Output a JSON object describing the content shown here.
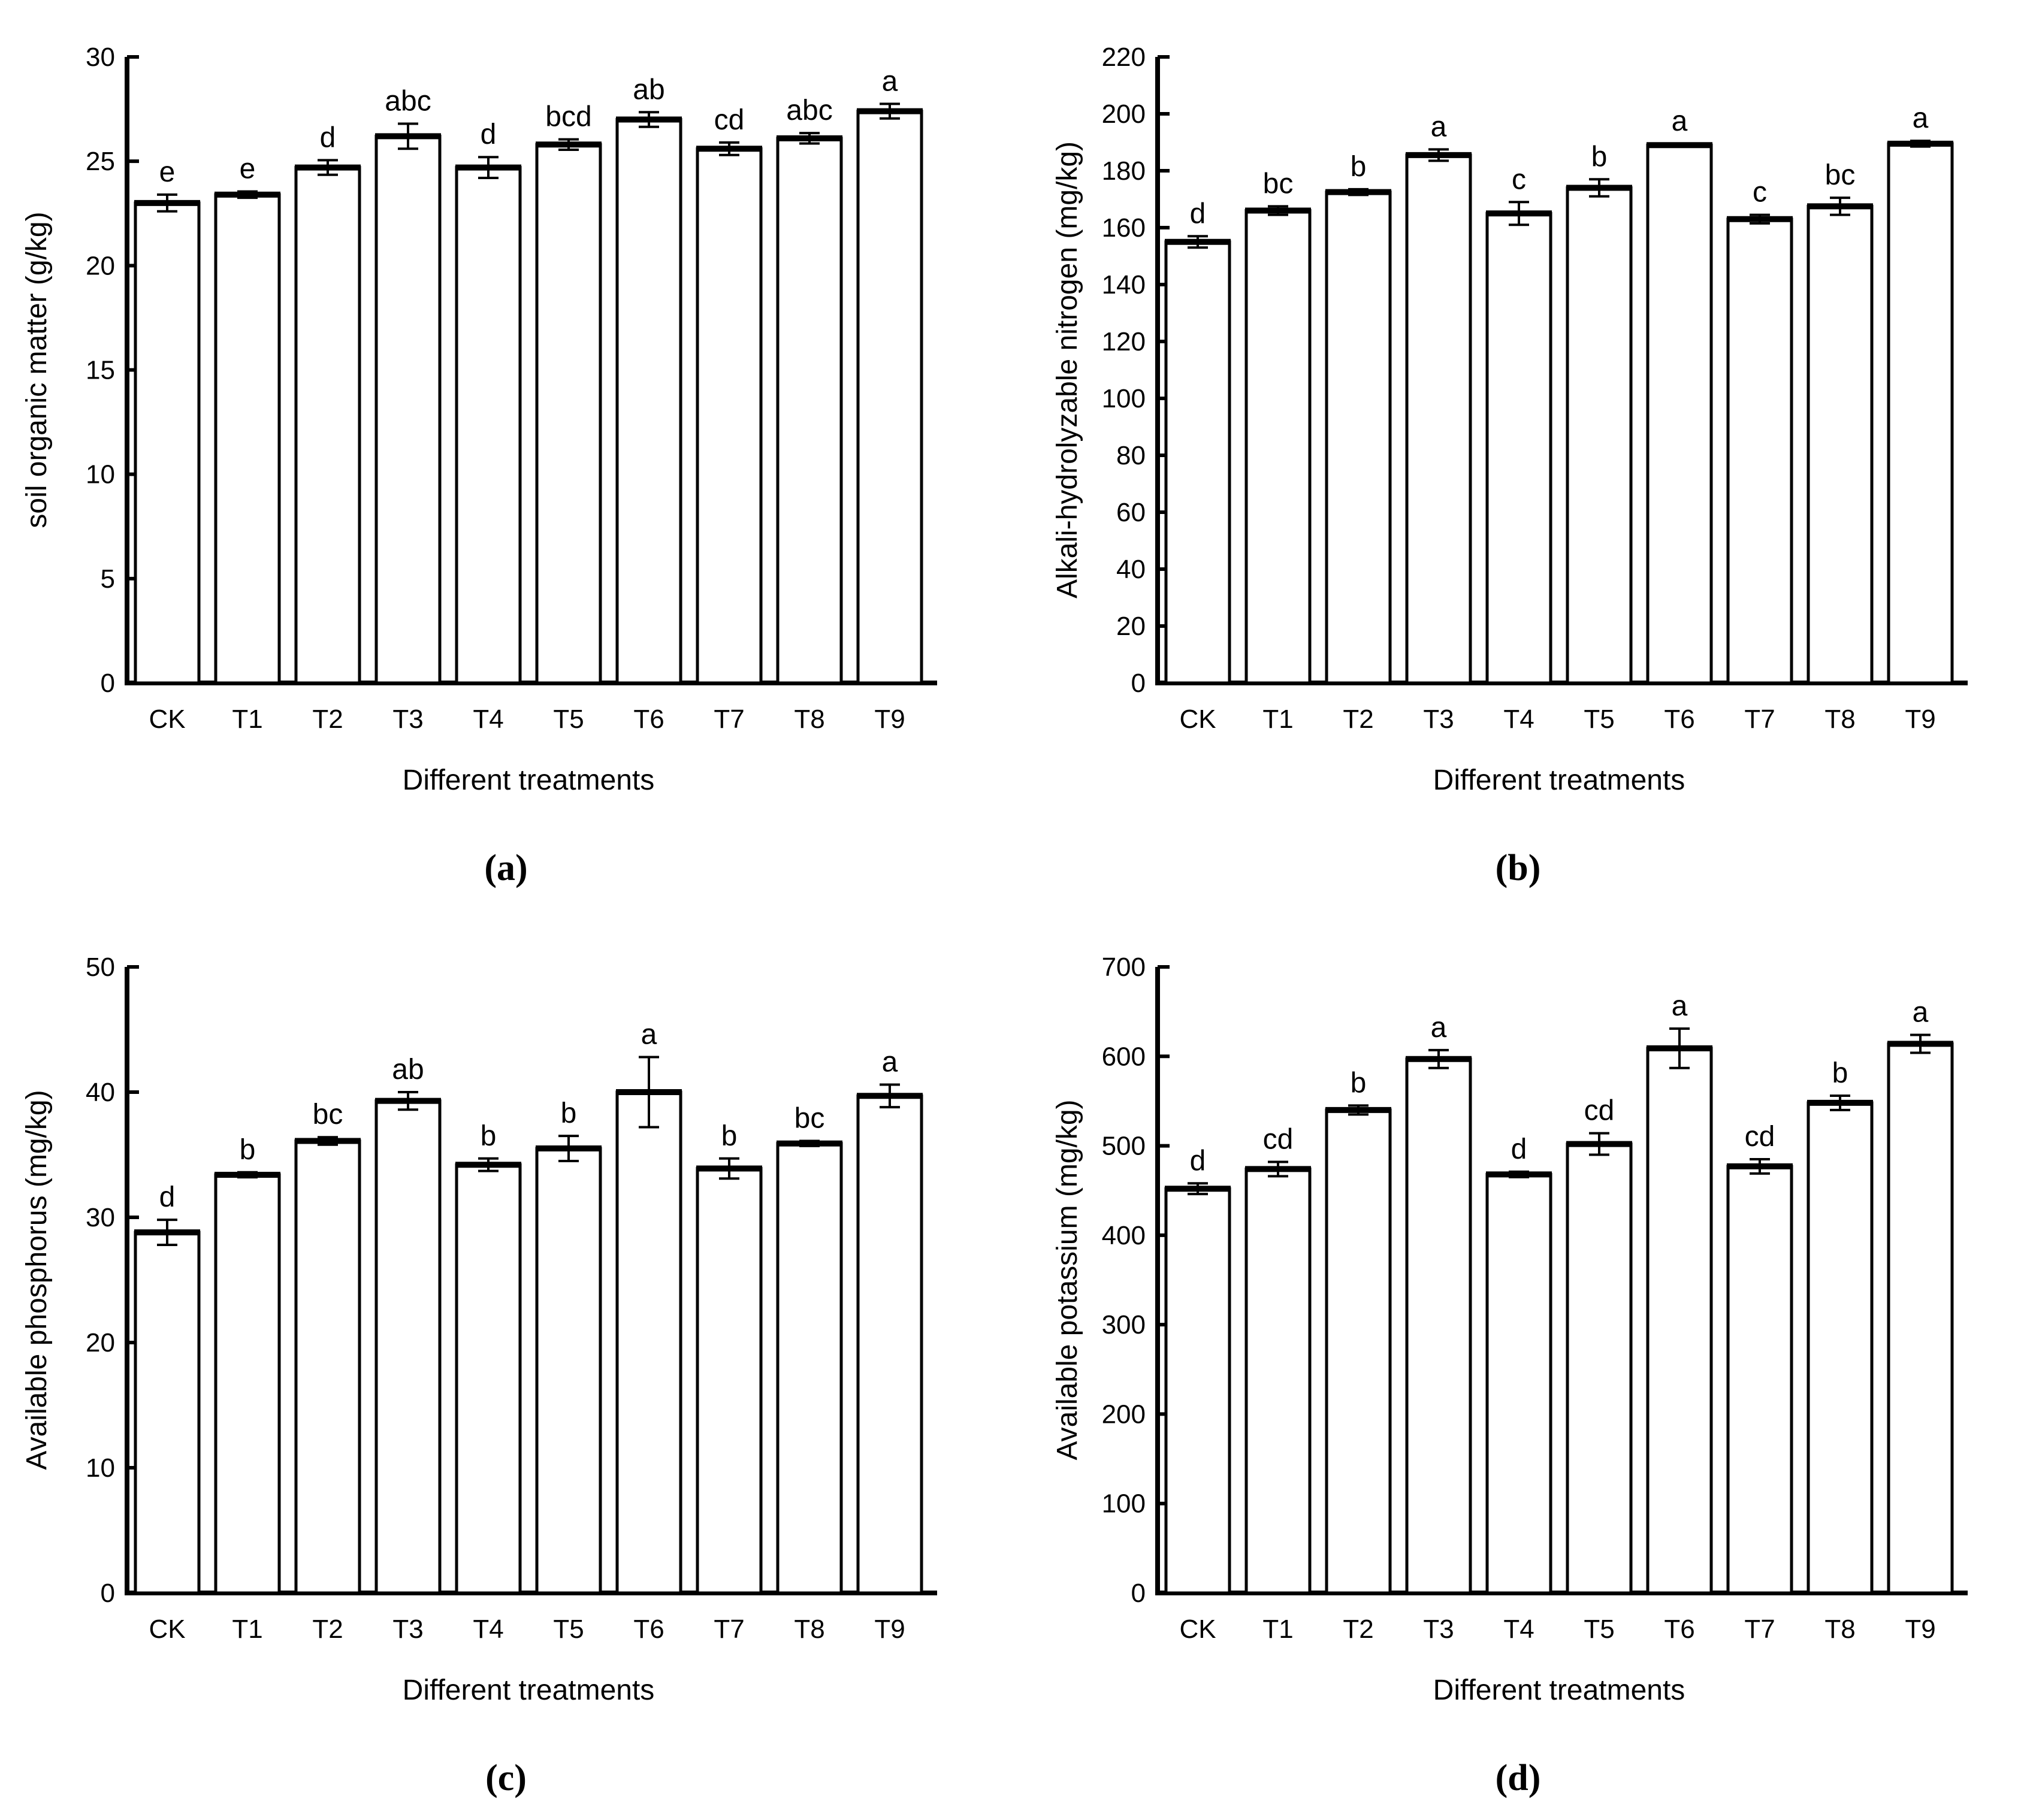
{
  "figure": {
    "background": "#ffffff",
    "ink": "#000000",
    "bar_fill": "#ffffff",
    "bar_stroke": "#000000"
  },
  "chart_data": [
    {
      "type": "bar",
      "panel": "a",
      "caption": "(a)",
      "categories": [
        "CK",
        "T1",
        "T2",
        "T3",
        "T4",
        "T5",
        "T6",
        "T7",
        "T8",
        "T9"
      ],
      "values": [
        23.0,
        23.4,
        24.7,
        26.2,
        24.7,
        25.8,
        27.0,
        25.6,
        26.1,
        27.4
      ],
      "errors": [
        0.4,
        0.15,
        0.35,
        0.6,
        0.5,
        0.25,
        0.35,
        0.3,
        0.25,
        0.35
      ],
      "sig_labels": [
        "e",
        "e",
        "d",
        "abc",
        "d",
        "bcd",
        "ab",
        "cd",
        "abc",
        "a"
      ],
      "title": "",
      "xlabel": "Different treatments",
      "ylabel": "soil organic matter（g/kg）",
      "ylim": [
        0,
        30
      ],
      "ytick_interval": 5,
      "grid": false,
      "legend": "none"
    },
    {
      "type": "bar",
      "panel": "b",
      "caption": "(b)",
      "categories": [
        "CK",
        "T1",
        "T2",
        "T3",
        "T4",
        "T5",
        "T6",
        "T7",
        "T8",
        "T9"
      ],
      "values": [
        155,
        166,
        172.5,
        185.5,
        165,
        174,
        189,
        163,
        167.5,
        189.5
      ],
      "errors": [
        2,
        1.5,
        1,
        2,
        4,
        3,
        0.5,
        1.5,
        3,
        1
      ],
      "sig_labels": [
        "d",
        "bc",
        "b",
        "a",
        "c",
        "b",
        "a",
        "c",
        "bc",
        "a"
      ],
      "title": "",
      "xlabel": "Different treatments",
      "ylabel": "Alkali-hydrolyzable nitrogen（mg/kg）",
      "ylim": [
        0,
        220
      ],
      "ytick_interval": 20,
      "grid": false,
      "legend": "none"
    },
    {
      "type": "bar",
      "panel": "c",
      "caption": "(c)",
      "categories": [
        "CK",
        "T1",
        "T2",
        "T3",
        "T4",
        "T5",
        "T6",
        "T7",
        "T8",
        "T9"
      ],
      "values": [
        28.8,
        33.4,
        36.1,
        39.3,
        34.2,
        35.5,
        40.0,
        33.9,
        35.9,
        39.7
      ],
      "errors": [
        1.0,
        0.2,
        0.3,
        0.7,
        0.5,
        1.0,
        2.8,
        0.8,
        0.2,
        0.9
      ],
      "sig_labels": [
        "d",
        "b",
        "bc",
        "ab",
        "b",
        "b",
        "a",
        "b",
        "bc",
        "a"
      ],
      "title": "",
      "xlabel": "Different treatments",
      "ylabel": "Available phosphorus（mg/kg）",
      "ylim": [
        0,
        50
      ],
      "ytick_interval": 10,
      "grid": false,
      "legend": "none"
    },
    {
      "type": "bar",
      "panel": "d",
      "caption": "(d)",
      "categories": [
        "CK",
        "T1",
        "T2",
        "T3",
        "T4",
        "T5",
        "T6",
        "T7",
        "T8",
        "T9"
      ],
      "values": [
        452,
        474,
        540,
        597,
        468,
        502,
        609,
        477,
        548,
        614
      ],
      "errors": [
        6,
        8,
        5,
        10,
        3,
        12,
        22,
        8,
        8,
        10
      ],
      "sig_labels": [
        "d",
        "cd",
        "b",
        "a",
        "d",
        "cd",
        "a",
        "cd",
        "b",
        "a"
      ],
      "title": "",
      "xlabel": "Different treatments",
      "ylabel": "Available potassium（mg/kg）",
      "ylim": [
        0,
        700
      ],
      "ytick_interval": 100,
      "grid": false,
      "legend": "none"
    }
  ]
}
